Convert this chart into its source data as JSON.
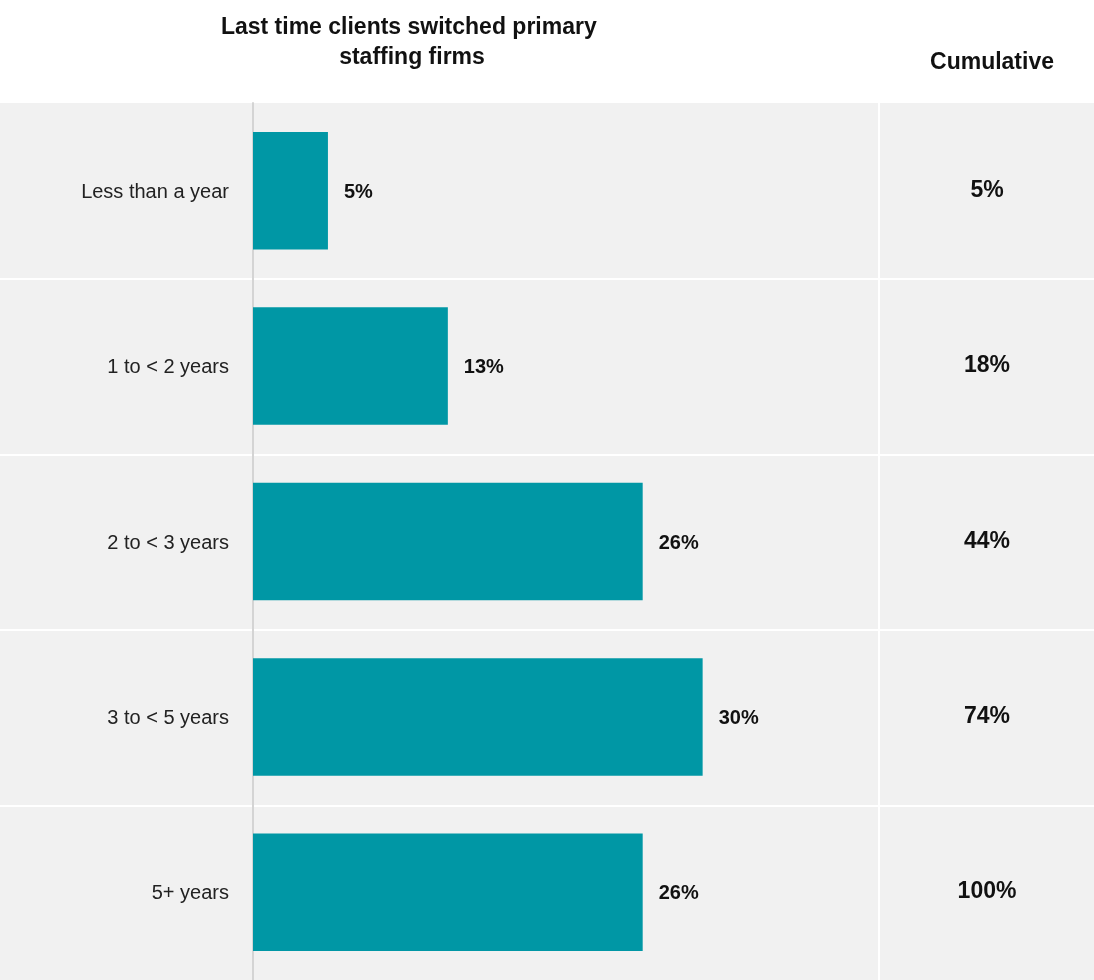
{
  "chart_data": [
    {
      "type": "bar",
      "title": "Last time clients switched primary staffing firms",
      "orientation": "horizontal",
      "categories": [
        "Less than a year",
        "1 to < 2 years",
        "2 to < 3 years",
        "3 to < 5 years",
        "5+ years"
      ],
      "values": [
        5,
        13,
        26,
        30,
        26
      ],
      "value_labels": [
        "5%",
        "13%",
        "26%",
        "30%",
        "26%"
      ],
      "color": "#0097a5",
      "tick_labels": "y"
    },
    {
      "type": "other",
      "title": "Cumulative",
      "annotations": [
        "5%",
        "18%",
        "44%",
        "74%",
        "100%"
      ]
    }
  ]
}
